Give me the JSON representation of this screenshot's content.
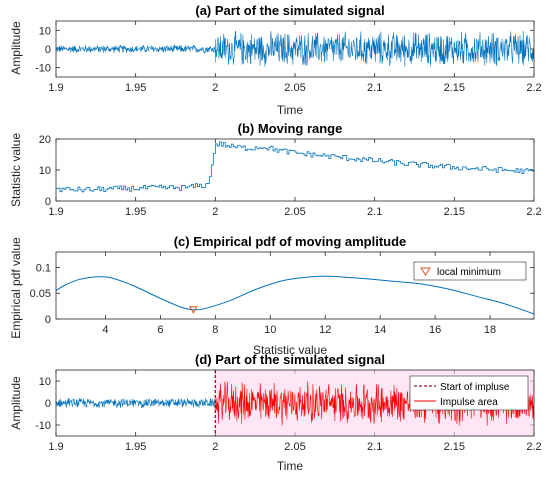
{
  "chart_data": [
    {
      "type": "line",
      "title": "(a) Part of the simulated signal",
      "xlabel": "Time",
      "ylabel": "Amplitude",
      "xlim": [
        1.9,
        2.2
      ],
      "ylim": [
        -15,
        15
      ],
      "xticks": [
        1.9,
        1.95,
        2,
        2.05,
        2.1,
        2.15,
        2.2
      ],
      "xtick_labels": [
        "1.9",
        "1.95",
        "2",
        "2.05",
        "2.1",
        "2.15",
        "2.2"
      ],
      "yticks": [
        -10,
        0,
        10
      ],
      "ytick_labels": [
        "-10",
        "0",
        "10"
      ],
      "color": "#0072BD",
      "series": [
        {
          "x": [
            1.9,
            2.0
          ],
          "values": [
            -2.5,
            2.5
          ]
        },
        {
          "x": [
            2.0,
            2.2
          ],
          "values": [
            -10.5,
            10.5
          ]
        }
      ]
    },
    {
      "type": "line",
      "title": "(b) Moving range",
      "xlabel": "",
      "ylabel": "Statistic value",
      "xlim": [
        1.9,
        2.2
      ],
      "ylim": [
        0,
        20
      ],
      "xticks": [
        1.9,
        1.95,
        2,
        2.05,
        2.1,
        2.15,
        2.2
      ],
      "xtick_labels": [
        "1.9",
        "1.95",
        "2",
        "2.05",
        "2.1",
        "2.15",
        "2.2"
      ],
      "yticks": [
        0,
        10,
        20
      ],
      "ytick_labels": [
        "0",
        "10",
        "20"
      ],
      "color": "#0072BD",
      "x": [
        1.9,
        1.92,
        1.94,
        1.96,
        1.98,
        1.995,
        2.0,
        2.005,
        2.01,
        2.02,
        2.03,
        2.04,
        2.05,
        2.06,
        2.08,
        2.1,
        2.12,
        2.14,
        2.16,
        2.18,
        2.2
      ],
      "values": [
        3.8,
        3.6,
        4.0,
        4.2,
        4.3,
        5.2,
        18.5,
        18.2,
        17.5,
        17.0,
        17.5,
        16.3,
        15.5,
        15.0,
        14.0,
        13.0,
        12.0,
        11.2,
        10.5,
        10.0,
        9.5
      ]
    },
    {
      "type": "line",
      "title": "(c) Empirical pdf of moving amplitude",
      "xlabel": "Statistic value",
      "ylabel": "Empirical pdf value",
      "xlim": [
        2.2,
        19.6
      ],
      "ylim": [
        0,
        0.13
      ],
      "xticks": [
        4,
        6,
        8,
        10,
        12,
        14,
        16,
        18
      ],
      "xtick_labels": [
        "4",
        "6",
        "8",
        "10",
        "12",
        "14",
        "16",
        "18"
      ],
      "yticks": [
        0,
        0.05,
        0.1
      ],
      "ytick_labels": [
        "0",
        "0.05",
        "0.1"
      ],
      "color": "#0072BD",
      "x": [
        2.2,
        2.5,
        3.0,
        3.5,
        3.8,
        4.2,
        5.0,
        6.0,
        6.8,
        7.2,
        7.6,
        8.5,
        9.5,
        10.5,
        11.5,
        12.0,
        12.5,
        13.5,
        14.5,
        15.5,
        16.5,
        17.5,
        18.5,
        19.6
      ],
      "values": [
        0.055,
        0.065,
        0.076,
        0.081,
        0.082,
        0.08,
        0.065,
        0.04,
        0.022,
        0.018,
        0.02,
        0.035,
        0.058,
        0.075,
        0.082,
        0.083,
        0.082,
        0.078,
        0.073,
        0.068,
        0.058,
        0.044,
        0.03,
        0.01
      ],
      "marker": {
        "x": 7.2,
        "y": 0.018,
        "color": "#D95319"
      },
      "legend": {
        "entries": [
          "local minimum"
        ],
        "placement": "top-right"
      }
    },
    {
      "type": "line",
      "title": "(d) Part of the simulated signal",
      "xlabel": "Time",
      "ylabel": "Amplitude",
      "xlim": [
        1.9,
        2.2
      ],
      "ylim": [
        -15,
        15
      ],
      "xticks": [
        1.9,
        1.95,
        2,
        2.05,
        2.1,
        2.15,
        2.2
      ],
      "xtick_labels": [
        "1.9",
        "1.95",
        "2",
        "2.05",
        "2.1",
        "2.15",
        "2.2"
      ],
      "yticks": [
        -10,
        0,
        10
      ],
      "ytick_labels": [
        "-10",
        "0",
        "10"
      ],
      "series": [
        {
          "x": [
            1.9,
            2.0
          ],
          "values": [
            -2.5,
            2.5
          ],
          "color": "#0072BD"
        },
        {
          "name": "Impulse area",
          "x": [
            2.0,
            2.2
          ],
          "values": [
            -10.5,
            10.5
          ],
          "color": "#FF0000"
        }
      ],
      "impulse_start": 2.0,
      "legend": {
        "entries": [
          "Start of impluse",
          "Impulse area"
        ],
        "placement": "top-right"
      }
    }
  ]
}
